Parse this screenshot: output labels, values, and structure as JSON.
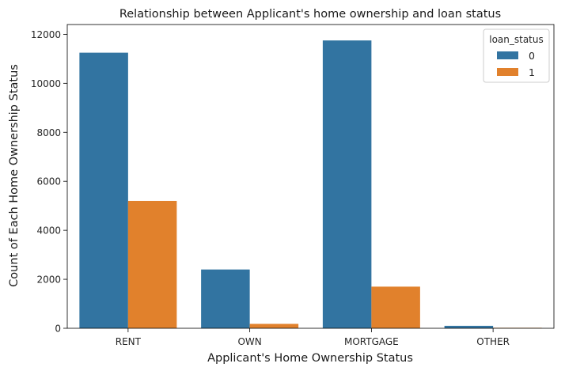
{
  "chart_data": {
    "type": "bar",
    "title": "Relationship between Applicant's home ownership and loan status",
    "xlabel": "Applicant's Home Ownership Status",
    "ylabel": "Count of Each Home Ownership Status",
    "categories": [
      "RENT",
      "OWN",
      "MORTGAGE",
      "OTHER"
    ],
    "series": [
      {
        "name": "0",
        "values": [
          11250,
          2400,
          11750,
          100
        ],
        "color": "#3274a1"
      },
      {
        "name": "1",
        "values": [
          5200,
          180,
          1700,
          20
        ],
        "color": "#e1812c"
      }
    ],
    "ylim": [
      0,
      12400
    ],
    "yticks": [
      0,
      2000,
      4000,
      6000,
      8000,
      10000,
      12000
    ],
    "legend": {
      "title": "loan_status",
      "placement": "top-right"
    },
    "grid": false
  }
}
